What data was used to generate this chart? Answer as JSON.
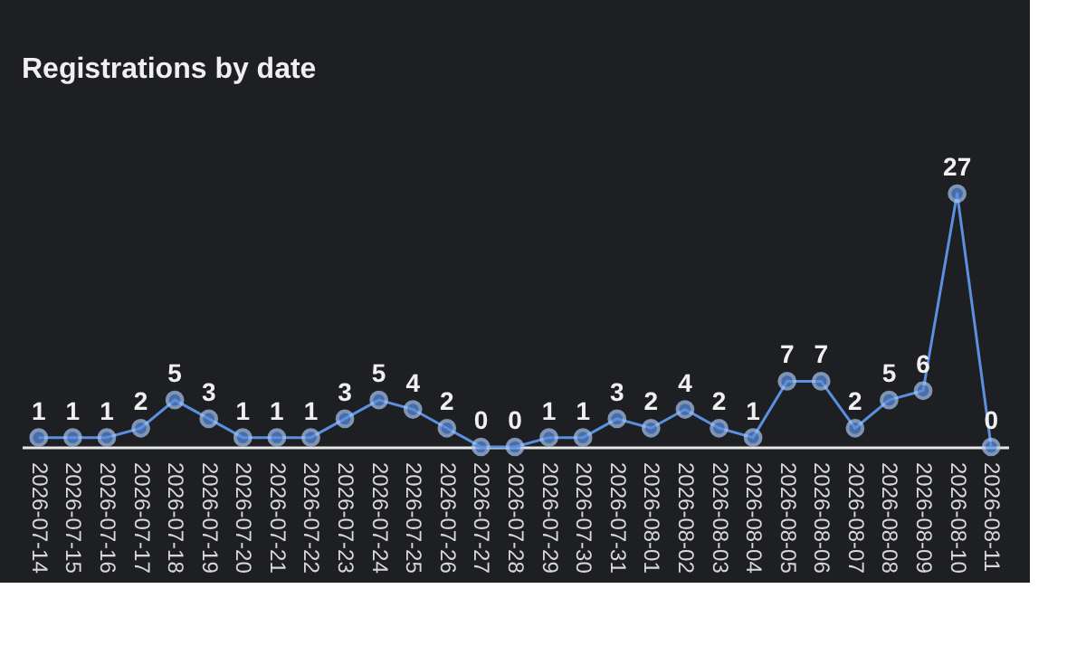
{
  "chart_data": {
    "type": "line",
    "title": "Registrations by date",
    "categories": [
      "2026-07-14",
      "2026-07-15",
      "2026-07-16",
      "2026-07-17",
      "2026-07-18",
      "2026-07-19",
      "2026-07-20",
      "2026-07-21",
      "2026-07-22",
      "2026-07-23",
      "2026-07-24",
      "2026-07-25",
      "2026-07-26",
      "2026-07-27",
      "2026-07-28",
      "2026-07-29",
      "2026-07-30",
      "2026-07-31",
      "2026-08-01",
      "2026-08-02",
      "2026-08-03",
      "2026-08-04",
      "2026-08-05",
      "2026-08-06",
      "2026-08-07",
      "2026-08-08",
      "2026-08-09",
      "2026-08-10",
      "2026-08-11"
    ],
    "series": [
      {
        "color": "#5b8fe0",
        "values": [
          1,
          1,
          1,
          2,
          5,
          3,
          1,
          1,
          1,
          3,
          5,
          4,
          2,
          0,
          0,
          1,
          1,
          3,
          2,
          4,
          2,
          1,
          7,
          7,
          2,
          5,
          6,
          27,
          0
        ]
      }
    ],
    "data_labels": true,
    "marker": "circle",
    "grid": false
  }
}
